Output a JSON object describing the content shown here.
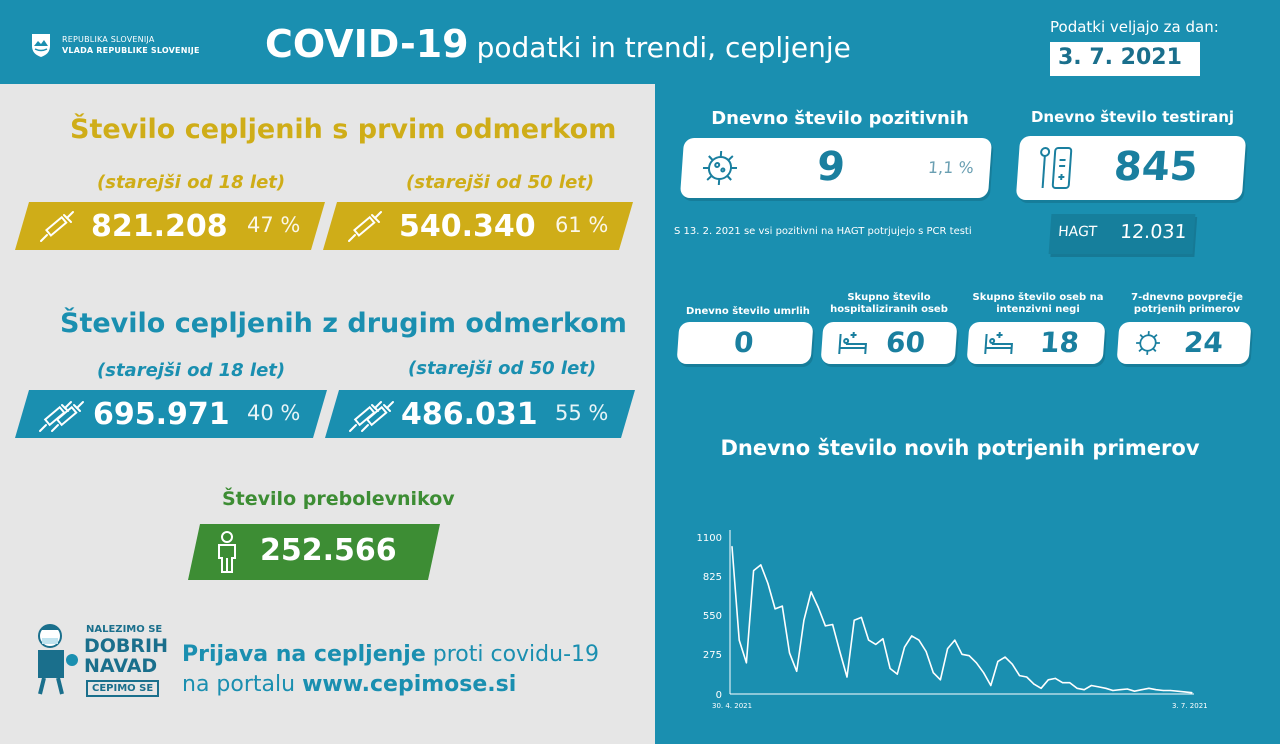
{
  "header": {
    "gov_line1": "REPUBLIKA SLOVENIJA",
    "gov_line2": "VLADA REPUBLIKE SLOVENIJE",
    "title_bold": "COVID-19",
    "title_rest": "podatki in trendi, cepljenje",
    "date_label": "Podatki veljajo za dan:",
    "date": "3. 7. 2021"
  },
  "first_dose": {
    "title": "Število cepljenih s prvim odmerkom",
    "groups": [
      {
        "label": "(starejši od 18 let)",
        "value": "821.208",
        "pct": "47 %",
        "pct_num": 47
      },
      {
        "label": "(starejši od 50 let)",
        "value": "540.340",
        "pct": "61 %",
        "pct_num": 61
      }
    ]
  },
  "second_dose": {
    "title": "Število cepljenih z drugim odmerkom",
    "groups": [
      {
        "label": "(starejši od 18 let)",
        "value": "695.971",
        "pct": "40 %",
        "pct_num": 40
      },
      {
        "label": "(starejši od 50 let)",
        "value": "486.031",
        "pct": "55 %",
        "pct_num": 55
      }
    ]
  },
  "recovered": {
    "title": "Število prebolevnikov",
    "value": "252.566"
  },
  "promo": {
    "logo_l1": "NALEZIMO SE",
    "logo_l2": "DOBRIH",
    "logo_l3": "NAVAD",
    "logo_l4": "CEPIMO SE",
    "line1_bold": "Prijava na cepljenje",
    "line1_rest": "proti covidu-19",
    "line2_rest": "na portalu",
    "line2_bold": "www.cepimose.si"
  },
  "daily_positive": {
    "title": "Dnevno število pozitivnih",
    "value": "9",
    "pct": "1,1 %"
  },
  "daily_tests": {
    "title": "Dnevno število testiranj",
    "value": "845",
    "hagt_label": "HAGT",
    "hagt_value": "12.031"
  },
  "note": "S 13. 2. 2021 se vsi pozitivni na HAGT potrjujejo s PCR testi",
  "stats": [
    {
      "title": "Dnevno število umrlih",
      "value": "0",
      "icon": "none"
    },
    {
      "title": "Skupno število hospitaliziranih oseb",
      "value": "60",
      "icon": "hospital-bed-icon"
    },
    {
      "title": "Skupno število oseb na intenzivni negi",
      "value": "18",
      "icon": "icu-bed-icon"
    },
    {
      "title": "7-dnevno povprečje potrjenih primerov",
      "value": "24",
      "icon": "virus-icon"
    }
  ],
  "chart_data": {
    "type": "line",
    "title": "Dnevno število novih potrjenih primerov",
    "x_start_label": "30. 4. 2021",
    "x_end_label": "3. 7. 2021",
    "y_ticks": [
      "1100",
      "825",
      "550",
      "275",
      "0"
    ],
    "ylim": [
      0,
      1100
    ],
    "values": [
      1040,
      380,
      220,
      870,
      910,
      780,
      600,
      620,
      290,
      160,
      520,
      720,
      610,
      480,
      490,
      300,
      120,
      520,
      540,
      380,
      350,
      390,
      180,
      140,
      330,
      410,
      380,
      300,
      150,
      100,
      320,
      380,
      280,
      270,
      220,
      150,
      60,
      230,
      260,
      210,
      130,
      120,
      70,
      40,
      100,
      110,
      80,
      80,
      40,
      30,
      60,
      50,
      40,
      25,
      30,
      35,
      20,
      30,
      40,
      30,
      25,
      25,
      20,
      15,
      9
    ],
    "grid": false,
    "color": "#ffffff"
  },
  "colors": {
    "teal": "#1a8fb0",
    "gold": "#cfad18",
    "green": "#3d8d34",
    "light": "#e6e6e6"
  }
}
